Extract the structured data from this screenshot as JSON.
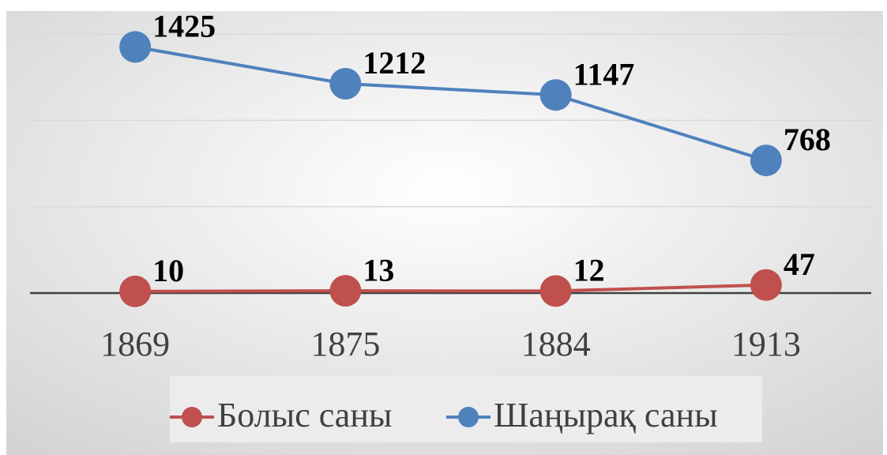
{
  "chart_data": {
    "type": "line",
    "categories": [
      "1869",
      "1875",
      "1884",
      "1913"
    ],
    "series": [
      {
        "name": "Болыс саны",
        "color": "#c0504d",
        "values": [
          10,
          13,
          12,
          47
        ]
      },
      {
        "name": "Шаңырақ саны",
        "color": "#4f81bd",
        "values": [
          1425,
          1212,
          1147,
          768
        ]
      }
    ],
    "ylim": [
      0,
      1500
    ],
    "yticks": [
      0,
      500,
      1000,
      1500
    ],
    "grid": true,
    "legend": "bottom"
  }
}
